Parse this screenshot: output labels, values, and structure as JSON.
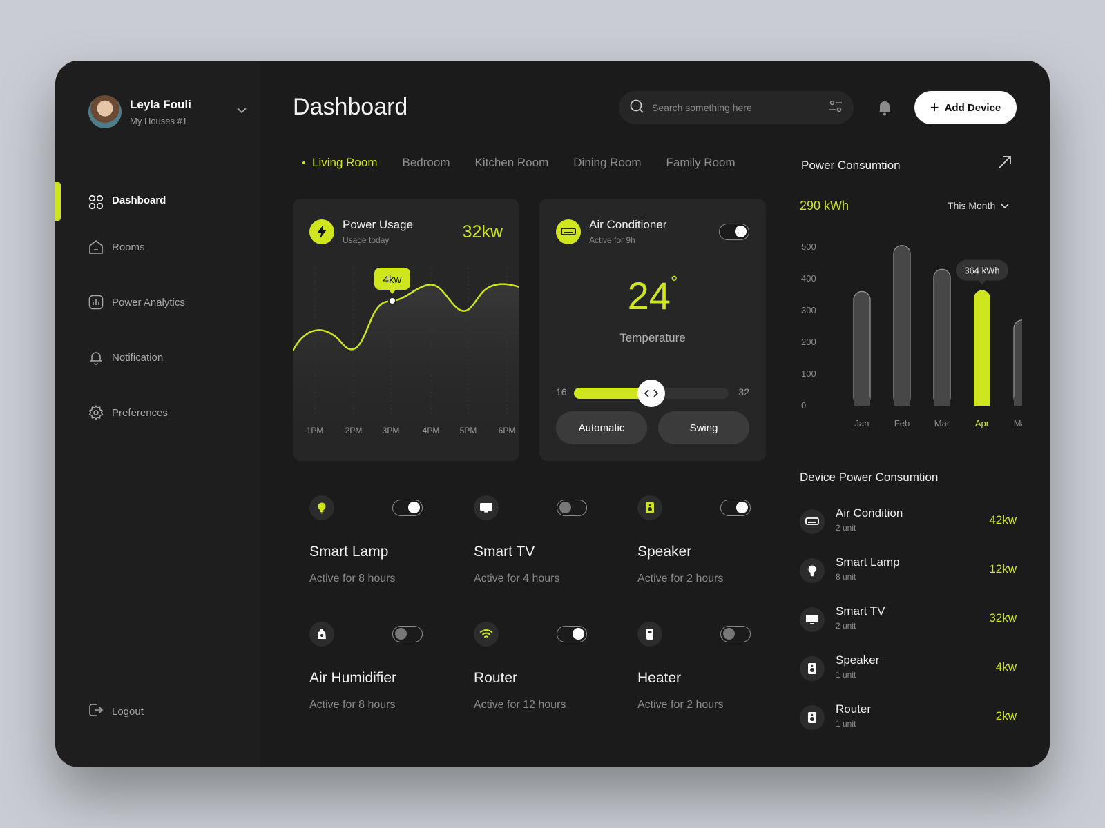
{
  "user": {
    "name": "Leyla Fouli",
    "house": "My Houses #1"
  },
  "nav": {
    "items": [
      {
        "label": "Dashboard",
        "icon": "grid-icon",
        "active": true
      },
      {
        "label": "Rooms",
        "icon": "home-icon"
      },
      {
        "label": "Power Analytics",
        "icon": "analytics-icon"
      },
      {
        "label": "Notification",
        "icon": "bell-icon"
      },
      {
        "label": "Preferences",
        "icon": "gear-icon"
      }
    ],
    "logout": "Logout"
  },
  "header": {
    "title": "Dashboard",
    "search_placeholder": "Search something here",
    "add_device": "Add Device"
  },
  "tabs": [
    "Living Room",
    "Bedroom",
    "Kitchen Room",
    "Dining Room",
    "Family Room"
  ],
  "power_usage": {
    "title": "Power Usage",
    "subtitle": "Usage today",
    "value": "32kw",
    "tooltip": "4kw",
    "times": [
      "1PM",
      "2PM",
      "3PM",
      "4PM",
      "5PM",
      "6PM"
    ]
  },
  "air_conditioner": {
    "title": "Air Conditioner",
    "subtitle": "Active for 9h",
    "on": true,
    "temperature": "24",
    "degree": "°",
    "temp_label": "Temperature",
    "min": "16",
    "max": "32",
    "value": 24,
    "btn_auto": "Automatic",
    "btn_swing": "Swing"
  },
  "devices": [
    {
      "name": "Smart Lamp",
      "sub": "Active for 8 hours",
      "on": true,
      "icon": "lamp-icon"
    },
    {
      "name": "Smart TV",
      "sub": "Active for 4 hours",
      "on": false,
      "icon": "tv-icon"
    },
    {
      "name": "Speaker",
      "sub": "Active for 2 hours",
      "on": true,
      "icon": "speaker-icon"
    },
    {
      "name": "Air Humidifier",
      "sub": "Active for 8 hours",
      "on": false,
      "icon": "humidifier-icon"
    },
    {
      "name": "Router",
      "sub": "Active for 12 hours",
      "on": true,
      "icon": "wifi-icon"
    },
    {
      "name": "Heater",
      "sub": "Active for 2 hours",
      "on": false,
      "icon": "heater-icon"
    }
  ],
  "power_consumption": {
    "title": "Power Consumtion",
    "total": "290 kWh",
    "period": "This Month",
    "tooltip": "364 kWh"
  },
  "chart_data": {
    "type": "bar",
    "categories": [
      "Jan",
      "Feb",
      "Mar",
      "Apr",
      "May"
    ],
    "values": [
      360,
      505,
      430,
      364,
      270
    ],
    "highlight": "Apr",
    "ylim": [
      0,
      500
    ],
    "yticks": [
      "500",
      "400",
      "300",
      "200",
      "100",
      "0"
    ],
    "colors": {
      "default": "#474747",
      "highlight": "#cfe61e"
    }
  },
  "device_power": {
    "title": "Device Power Consumtion",
    "items": [
      {
        "name": "Air Condition",
        "units": "2 unit",
        "value": "42kw",
        "icon": "ac-icon"
      },
      {
        "name": "Smart Lamp",
        "units": "8 unit",
        "value": "12kw",
        "icon": "lamp-icon"
      },
      {
        "name": "Smart TV",
        "units": "2 unit",
        "value": "32kw",
        "icon": "tv-icon"
      },
      {
        "name": "Speaker",
        "units": "1 unit",
        "value": "4kw",
        "icon": "speaker-icon"
      },
      {
        "name": "Router",
        "units": "1 unit",
        "value": "2kw",
        "icon": "speaker-icon"
      }
    ]
  },
  "colors": {
    "accent": "#cfe61e",
    "background": "#1b1b1b",
    "card": "#262626"
  }
}
